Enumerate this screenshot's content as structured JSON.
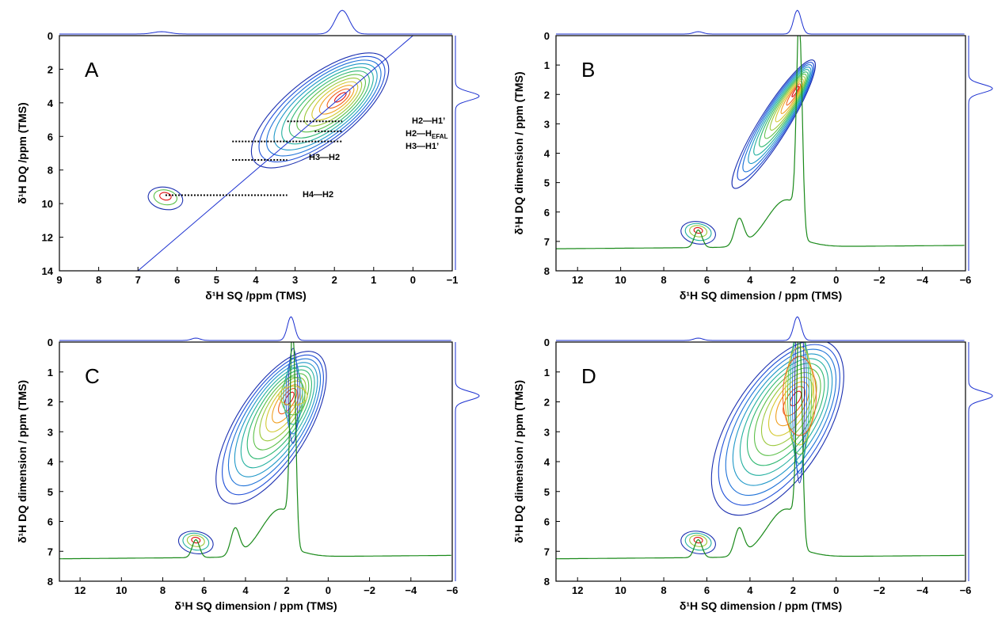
{
  "chart_data": [
    {
      "type": "heatmap",
      "panel_label": "A",
      "xlabel": "δ¹H SQ /ppm (TMS)",
      "ylabel": "δ¹H DQ /ppm (TMS)",
      "xlim": [
        9,
        -1
      ],
      "ylim": [
        0,
        14
      ],
      "xticks": [
        "9",
        "8",
        "7",
        "6",
        "5",
        "4",
        "3",
        "2",
        "1",
        "0",
        "−1"
      ],
      "yticks": [
        "0",
        "2",
        "4",
        "6",
        "8",
        "10",
        "12",
        "14"
      ],
      "colors": {
        "contour_low": "#1a3fd0",
        "contour_mid": "#2aa860",
        "contour_high": "#e01010",
        "projection": "#1a2fd0",
        "diagonal": "#1a2fd0"
      },
      "diagonal_line": true,
      "top_projection_peak_x": 1.8,
      "right_projection_peak_y": 3.6,
      "contour_peaks": [
        {
          "x": 1.8,
          "y": 3.6,
          "level": 1.0
        },
        {
          "x": 6.3,
          "y": 9.5,
          "level": 0.25
        }
      ],
      "annotations": [
        {
          "text": "H2—H1’",
          "line_x": [
            3.2,
            1.8
          ],
          "y": 5.1
        },
        {
          "text": "H2—H",
          "sub": "EFAL",
          "line_x": [
            2.5,
            1.8
          ],
          "y": 5.7
        },
        {
          "text": "H3—H1’",
          "line_x": [
            4.6,
            1.8
          ],
          "y": 6.3
        },
        {
          "text": "H3—H2",
          "line_x": [
            4.6,
            3.2
          ],
          "y": 7.4
        },
        {
          "text": "H4—H2",
          "line_x": [
            6.3,
            3.2
          ],
          "y": 9.5
        }
      ]
    },
    {
      "type": "heatmap",
      "panel_label": "B",
      "xlabel": "δ¹H SQ dimension / ppm (TMS)",
      "ylabel": "δ¹H DQ dimension / ppm (TMS)",
      "xlim": [
        13,
        -6
      ],
      "ylim": [
        0,
        8
      ],
      "xticks": [
        "12",
        "10",
        "8",
        "6",
        "4",
        "2",
        "0",
        "−2",
        "−4",
        "−6"
      ],
      "yticks": [
        "0",
        "1",
        "2",
        "3",
        "4",
        "5",
        "6",
        "7",
        "8"
      ],
      "colors": {
        "contour_low": "#1a3fd0",
        "contour_mid": "#2aa860",
        "contour_high": "#e01010",
        "projection": "#1a2fd0",
        "spectrum": "#1a8a1a"
      },
      "top_projection_peak_x": 1.8,
      "right_projection_peak_y": 1.8,
      "contour_peaks": [
        {
          "x": 1.8,
          "y": 1.8,
          "level": 1.0
        },
        {
          "x": 6.4,
          "y": 6.6,
          "level": 0.3
        }
      ],
      "spectrum_peaks_x": [
        1.7,
        4.5,
        6.4
      ]
    },
    {
      "type": "heatmap",
      "panel_label": "C",
      "xlabel": "δ¹H SQ dimension / ppm (TMS)",
      "ylabel": "δ¹H DQ dimension / ppm (TMS)",
      "xlim": [
        13,
        -6
      ],
      "ylim": [
        0,
        8
      ],
      "xticks": [
        "12",
        "10",
        "8",
        "6",
        "4",
        "2",
        "0",
        "−2",
        "−4",
        "−6"
      ],
      "yticks": [
        "0",
        "1",
        "2",
        "3",
        "4",
        "5",
        "6",
        "7",
        "8"
      ],
      "colors": {
        "contour_low": "#1a3fd0",
        "contour_mid": "#2aa860",
        "contour_high": "#e01010",
        "projection": "#1a2fd0",
        "spectrum": "#1a8a1a"
      },
      "top_projection_peak_x": 1.8,
      "right_projection_peak_y": 1.8,
      "contour_peaks": [
        {
          "x": 1.8,
          "y": 1.8,
          "level": 1.0
        },
        {
          "x": 6.4,
          "y": 6.6,
          "level": 0.35
        }
      ],
      "spectrum_peaks_x": [
        1.7,
        4.5,
        6.4
      ]
    },
    {
      "type": "heatmap",
      "panel_label": "D",
      "xlabel": "δ¹H SQ dimension / ppm (TMS)",
      "ylabel": "δ¹H DQ dimension / ppm (TMS)",
      "xlim": [
        13,
        -6
      ],
      "ylim": [
        0,
        8
      ],
      "xticks": [
        "12",
        "10",
        "8",
        "6",
        "4",
        "2",
        "0",
        "−2",
        "−4",
        "−6"
      ],
      "yticks": [
        "0",
        "1",
        "2",
        "3",
        "4",
        "5",
        "6",
        "7",
        "8"
      ],
      "colors": {
        "contour_low": "#1a3fd0",
        "contour_mid": "#2aa860",
        "contour_high": "#e01010",
        "projection": "#1a2fd0",
        "spectrum": "#1a8a1a"
      },
      "top_projection_peak_x": 1.8,
      "right_projection_peak_y": 1.8,
      "contour_peaks": [
        {
          "x": 1.8,
          "y": 1.8,
          "level": 1.0
        },
        {
          "x": 6.4,
          "y": 6.6,
          "level": 0.35
        }
      ],
      "spectrum_peaks_x": [
        1.7,
        4.5,
        6.4
      ]
    }
  ]
}
